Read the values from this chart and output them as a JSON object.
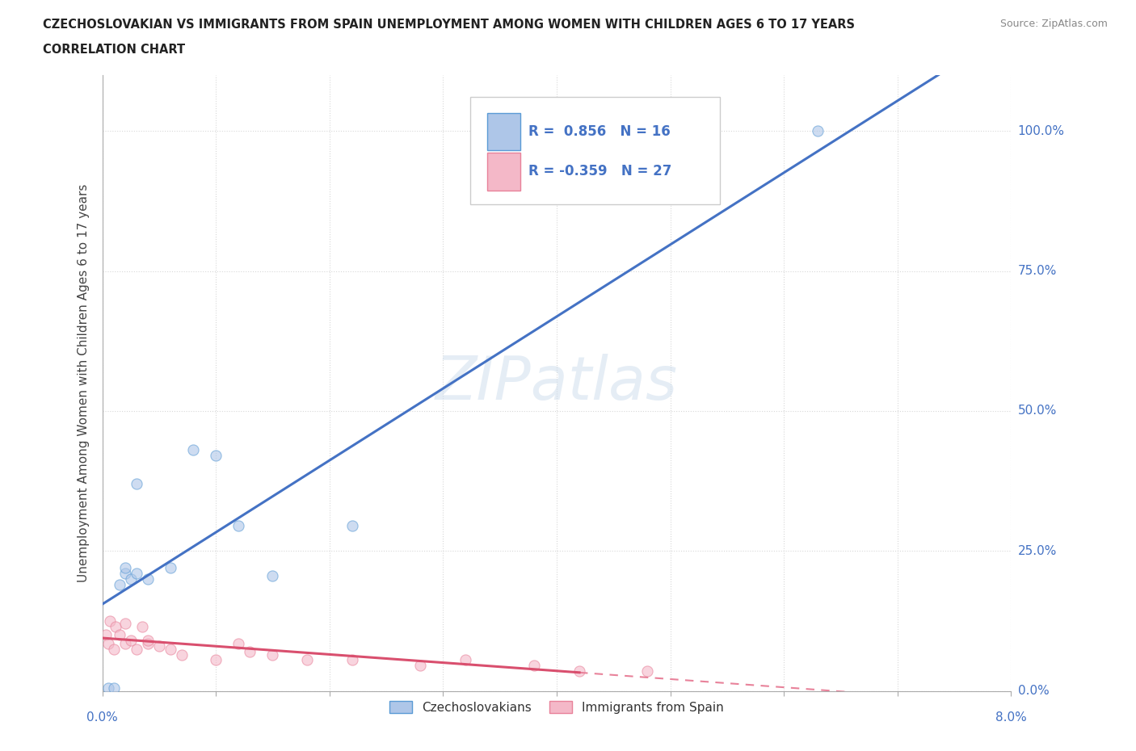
{
  "title_line1": "CZECHOSLOVAKIAN VS IMMIGRANTS FROM SPAIN UNEMPLOYMENT AMONG WOMEN WITH CHILDREN AGES 6 TO 17 YEARS",
  "title_line2": "CORRELATION CHART",
  "source": "Source: ZipAtlas.com",
  "ylabel_label": "Unemployment Among Women with Children Ages 6 to 17 years",
  "ylabel_ticks": [
    "0.0%",
    "25.0%",
    "50.0%",
    "75.0%",
    "100.0%"
  ],
  "ylabel_tick_vals": [
    0.0,
    0.25,
    0.5,
    0.75,
    1.0
  ],
  "xtick_labels_show": [
    "0.0%",
    "8.0%"
  ],
  "legend_entries": [
    {
      "label": "Czechoslovakians",
      "face_color": "#aec6e8",
      "edge_color": "#5b9bd5",
      "R": "0.856",
      "N": "16"
    },
    {
      "label": "Immigrants from Spain",
      "face_color": "#f4b8c8",
      "edge_color": "#e8829a",
      "R": "-0.359",
      "N": "27"
    }
  ],
  "czecho_points": [
    [
      0.0005,
      0.005
    ],
    [
      0.001,
      0.005
    ],
    [
      0.0015,
      0.19
    ],
    [
      0.002,
      0.21
    ],
    [
      0.002,
      0.22
    ],
    [
      0.0025,
      0.2
    ],
    [
      0.003,
      0.37
    ],
    [
      0.003,
      0.21
    ],
    [
      0.004,
      0.2
    ],
    [
      0.006,
      0.22
    ],
    [
      0.008,
      0.43
    ],
    [
      0.01,
      0.42
    ],
    [
      0.012,
      0.295
    ],
    [
      0.015,
      0.205
    ],
    [
      0.022,
      0.295
    ],
    [
      0.063,
      1.0
    ]
  ],
  "spain_points": [
    [
      0.0003,
      0.1
    ],
    [
      0.0005,
      0.085
    ],
    [
      0.0007,
      0.125
    ],
    [
      0.001,
      0.075
    ],
    [
      0.0012,
      0.115
    ],
    [
      0.0015,
      0.1
    ],
    [
      0.002,
      0.085
    ],
    [
      0.002,
      0.12
    ],
    [
      0.0025,
      0.09
    ],
    [
      0.003,
      0.075
    ],
    [
      0.0035,
      0.115
    ],
    [
      0.004,
      0.085
    ],
    [
      0.004,
      0.09
    ],
    [
      0.005,
      0.08
    ],
    [
      0.006,
      0.075
    ],
    [
      0.007,
      0.065
    ],
    [
      0.01,
      0.055
    ],
    [
      0.012,
      0.085
    ],
    [
      0.013,
      0.07
    ],
    [
      0.015,
      0.065
    ],
    [
      0.018,
      0.055
    ],
    [
      0.022,
      0.055
    ],
    [
      0.028,
      0.045
    ],
    [
      0.032,
      0.055
    ],
    [
      0.038,
      0.045
    ],
    [
      0.042,
      0.035
    ],
    [
      0.048,
      0.035
    ]
  ],
  "xmin": 0.0,
  "xmax": 0.08,
  "ymin": 0.0,
  "ymax": 1.1,
  "grid_color": "#d8d8d8",
  "background_color": "#ffffff",
  "blue_scatter_color": "#aec6e8",
  "blue_edge_color": "#5b9bd5",
  "pink_scatter_color": "#f4b8c8",
  "pink_edge_color": "#e8829a",
  "blue_line_color": "#4472c4",
  "pink_line_solid_color": "#d94f6e",
  "pink_line_dash_color": "#e8829a",
  "tick_label_color": "#4472c4",
  "watermark": "ZIPatlas",
  "marker_size": 90
}
